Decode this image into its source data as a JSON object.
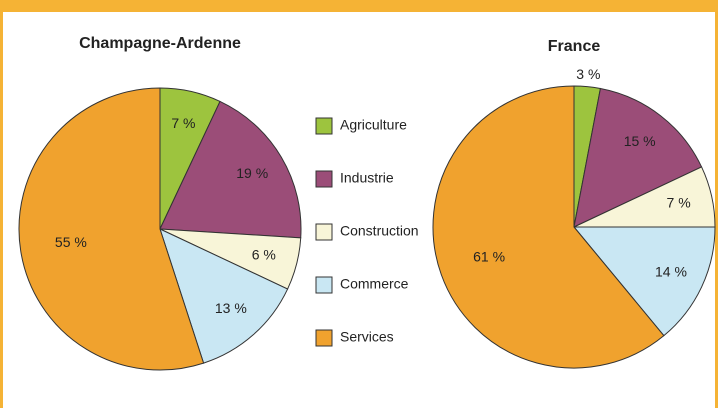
{
  "chart_data": [
    {
      "type": "pie",
      "title": "Champagne-Ardenne",
      "categories": [
        "Agriculture",
        "Industrie",
        "Construction",
        "Commerce",
        "Services"
      ],
      "values": [
        7,
        19,
        6,
        13,
        55
      ],
      "value_labels": [
        "7 %",
        "19 %",
        "6 %",
        "13 %",
        "55 %"
      ],
      "colors": [
        "#9dc43e",
        "#9b4d78",
        "#f8f5d8",
        "#c9e7f3",
        "#f0a22e"
      ]
    },
    {
      "type": "pie",
      "title": "France",
      "categories": [
        "Agriculture",
        "Industrie",
        "Construction",
        "Commerce",
        "Services"
      ],
      "values": [
        3,
        15,
        7,
        14,
        61
      ],
      "value_labels": [
        "3 %",
        "15 %",
        "7 %",
        "14 %",
        "61 %"
      ],
      "colors": [
        "#9dc43e",
        "#9b4d78",
        "#f8f5d8",
        "#c9e7f3",
        "#f0a22e"
      ]
    }
  ]
}
